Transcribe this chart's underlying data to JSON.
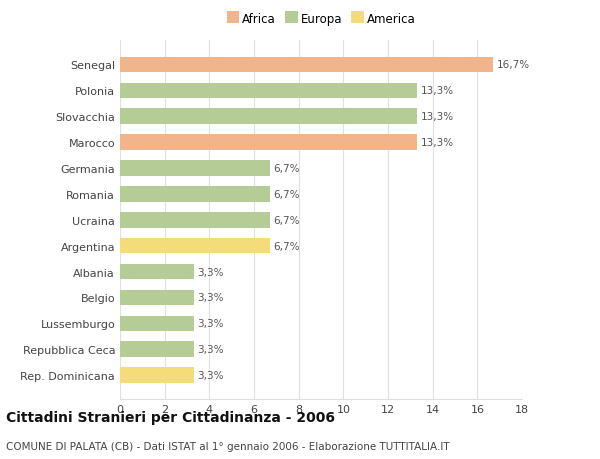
{
  "countries": [
    "Senegal",
    "Polonia",
    "Slovacchia",
    "Marocco",
    "Germania",
    "Romania",
    "Ucraina",
    "Argentina",
    "Albania",
    "Belgio",
    "Lussemburgo",
    "Repubblica Ceca",
    "Rep. Dominicana"
  ],
  "values": [
    16.7,
    13.3,
    13.3,
    13.3,
    6.7,
    6.7,
    6.7,
    6.7,
    3.3,
    3.3,
    3.3,
    3.3,
    3.3
  ],
  "labels": [
    "16,7%",
    "13,3%",
    "13,3%",
    "13,3%",
    "6,7%",
    "6,7%",
    "6,7%",
    "6,7%",
    "3,3%",
    "3,3%",
    "3,3%",
    "3,3%",
    "3,3%"
  ],
  "colors": [
    "#f2b48a",
    "#b5cc96",
    "#b5cc96",
    "#f2b48a",
    "#b5cc96",
    "#b5cc96",
    "#b5cc96",
    "#f5dc7a",
    "#b5cc96",
    "#b5cc96",
    "#b5cc96",
    "#b5cc96",
    "#f5dc7a"
  ],
  "legend": {
    "Africa": "#f2b48a",
    "Europa": "#b5cc96",
    "America": "#f5dc7a"
  },
  "xlim": [
    0,
    18
  ],
  "xticks": [
    0,
    2,
    4,
    6,
    8,
    10,
    12,
    14,
    16,
    18
  ],
  "title": "Cittadini Stranieri per Cittadinanza - 2006",
  "subtitle": "COMUNE DI PALATA (CB) - Dati ISTAT al 1° gennaio 2006 - Elaborazione TUTTITALIA.IT",
  "bg_color": "#ffffff",
  "grid_color": "#e0e0e0",
  "label_fontsize": 7.5,
  "tick_fontsize": 8,
  "title_fontsize": 10,
  "subtitle_fontsize": 7.5,
  "bar_height": 0.6
}
